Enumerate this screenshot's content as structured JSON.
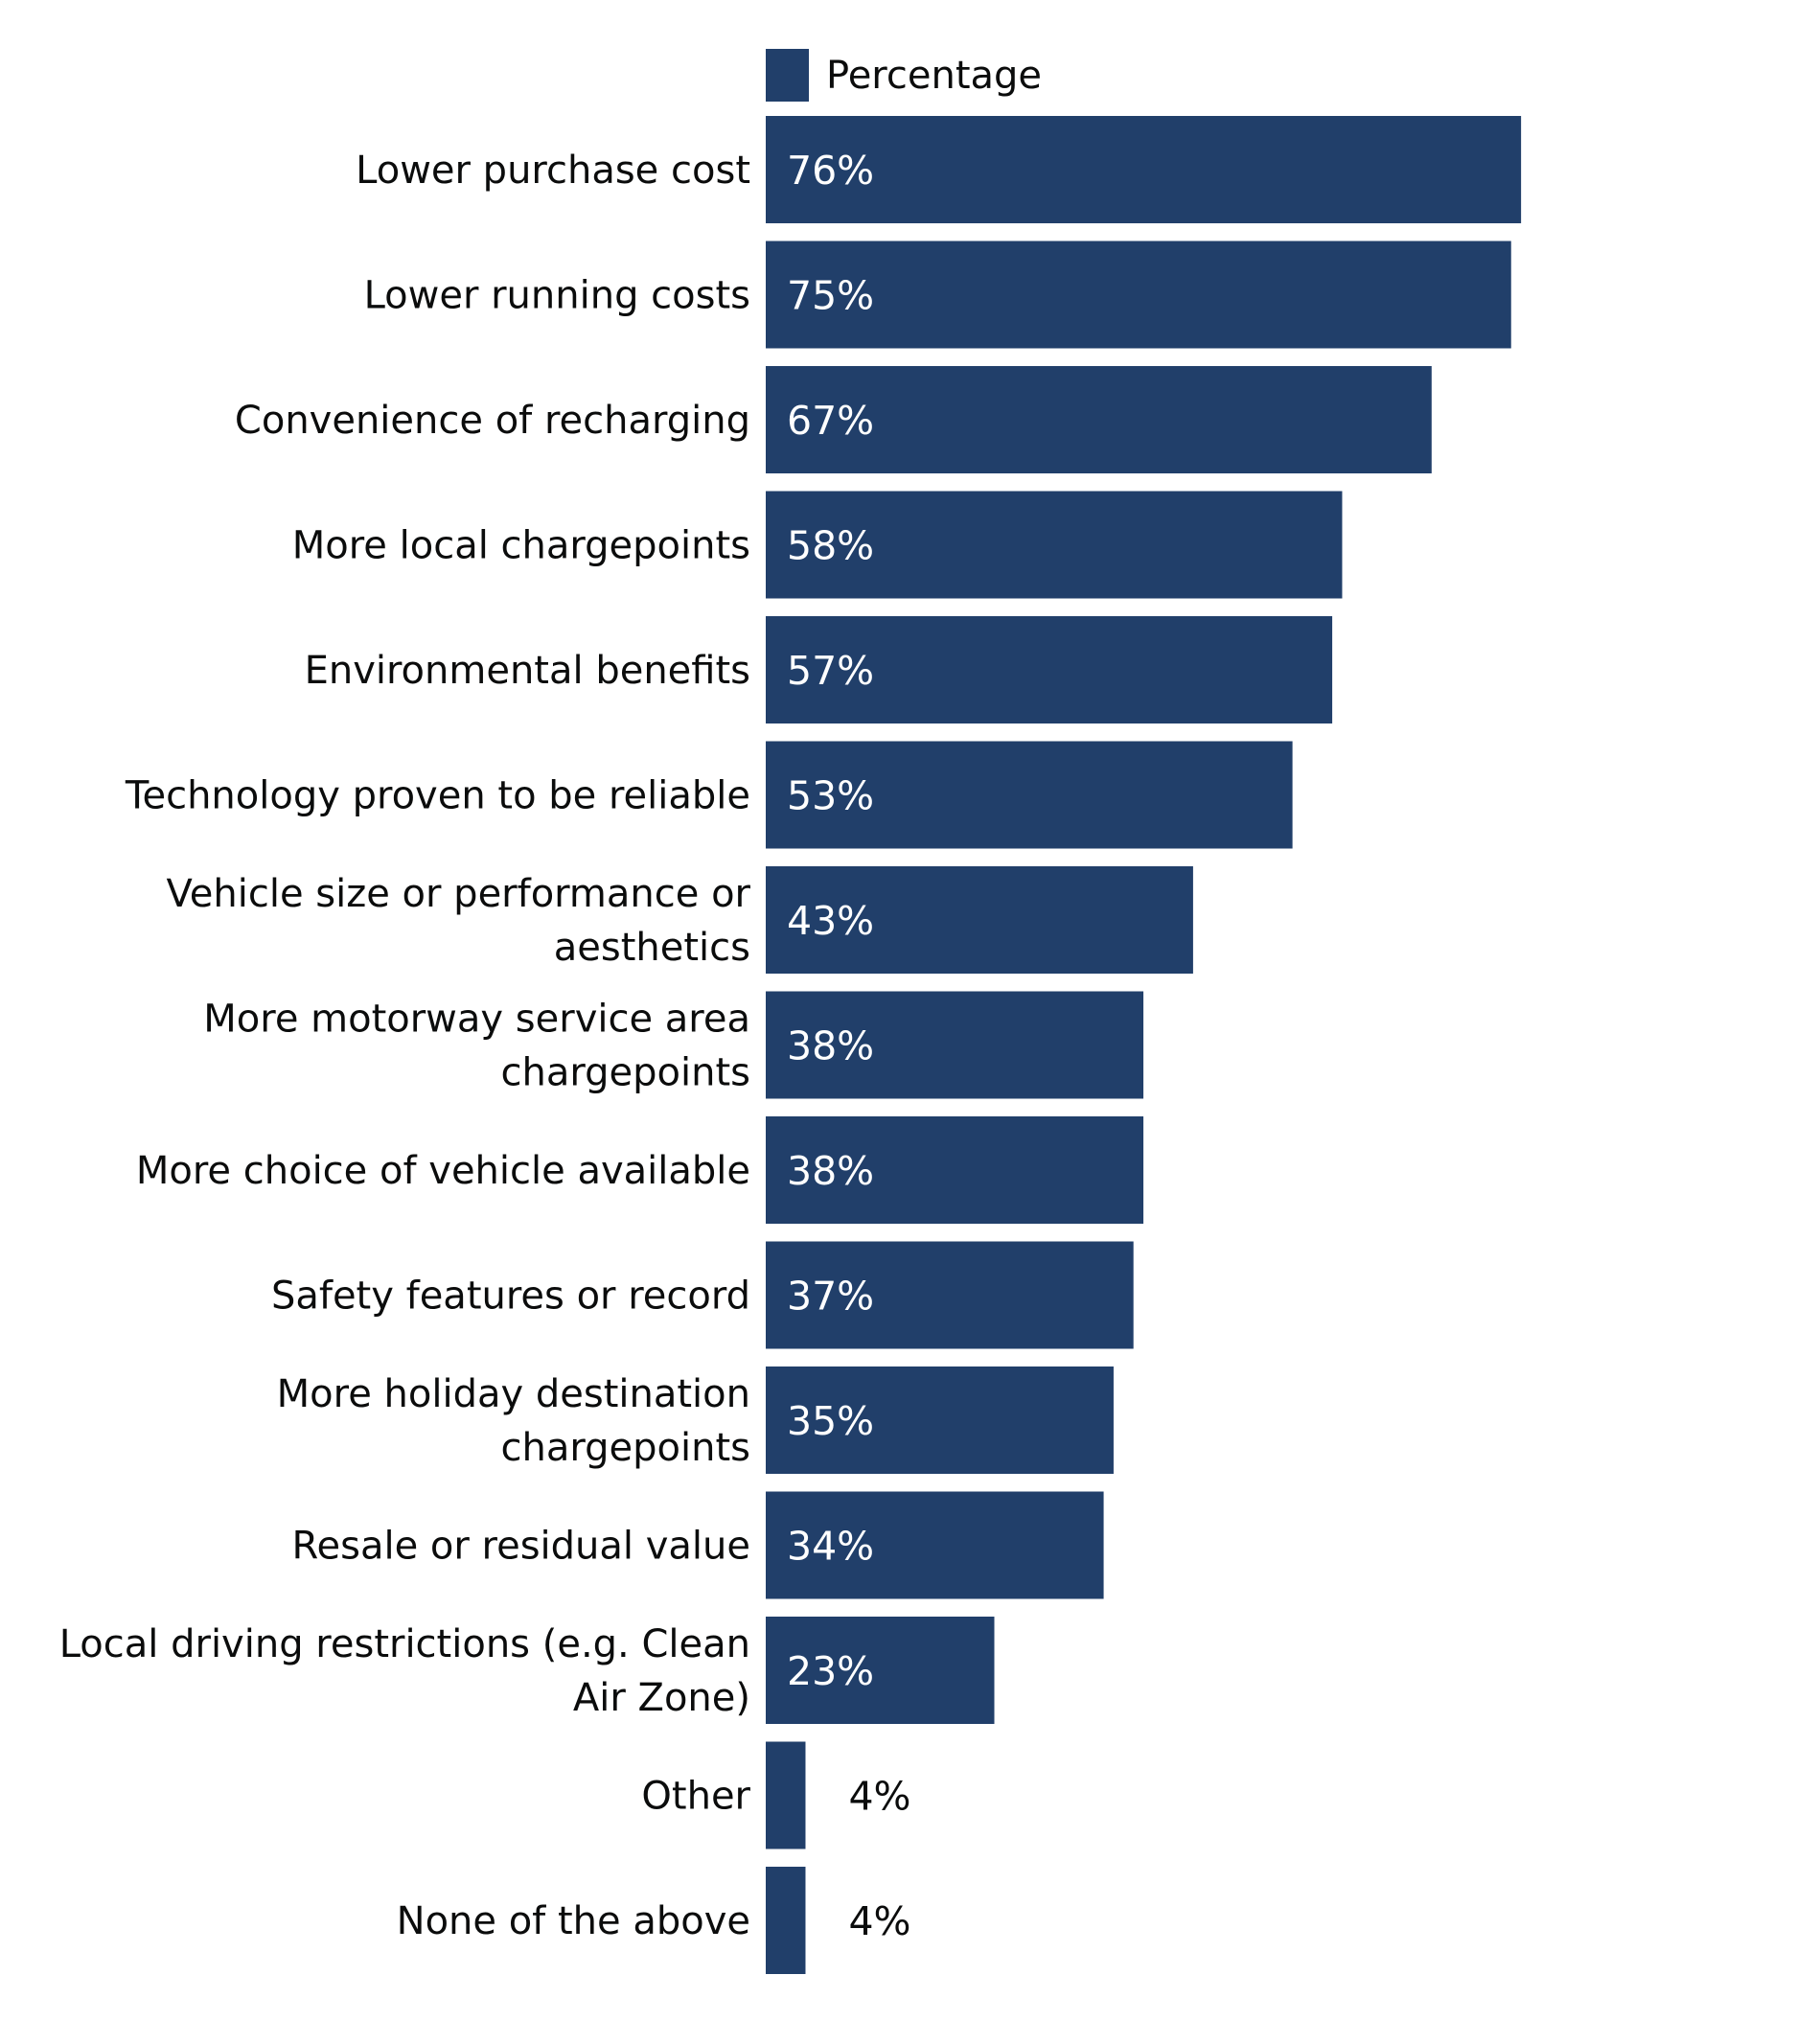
{
  "chart_data": {
    "type": "bar",
    "orientation": "horizontal",
    "categories": [
      [
        "Lower purchase cost"
      ],
      [
        "Lower running costs"
      ],
      [
        "Convenience of recharging"
      ],
      [
        "More local chargepoints"
      ],
      [
        "Environmental benefits"
      ],
      [
        "Technology proven to be reliable"
      ],
      [
        "Vehicle size or performance or",
        "aesthetics"
      ],
      [
        "More motorway service area",
        "chargepoints"
      ],
      [
        "More choice of vehicle available"
      ],
      [
        "Safety features or record"
      ],
      [
        "More holiday destination",
        "chargepoints"
      ],
      [
        "Resale or residual value"
      ],
      [
        "Local driving restrictions (e.g. Clean",
        "Air Zone)"
      ],
      [
        "Other"
      ],
      [
        "None of the above"
      ]
    ],
    "series": [
      {
        "name": "Percentage",
        "color": "#213f6a",
        "values": [
          76,
          75,
          67,
          58,
          57,
          53,
          43,
          38,
          38,
          37,
          35,
          34,
          23,
          4,
          4
        ],
        "labels": [
          "76%",
          "75%",
          "67%",
          "58%",
          "57%",
          "53%",
          "43%",
          "38%",
          "38%",
          "37%",
          "35%",
          "34%",
          "23%",
          "4%",
          "4%"
        ]
      }
    ],
    "xlim": [
      0,
      100
    ],
    "grid": false,
    "legend": "top",
    "label_color_inside": "#ffffff",
    "label_color_outside": "#0b0c0c"
  }
}
